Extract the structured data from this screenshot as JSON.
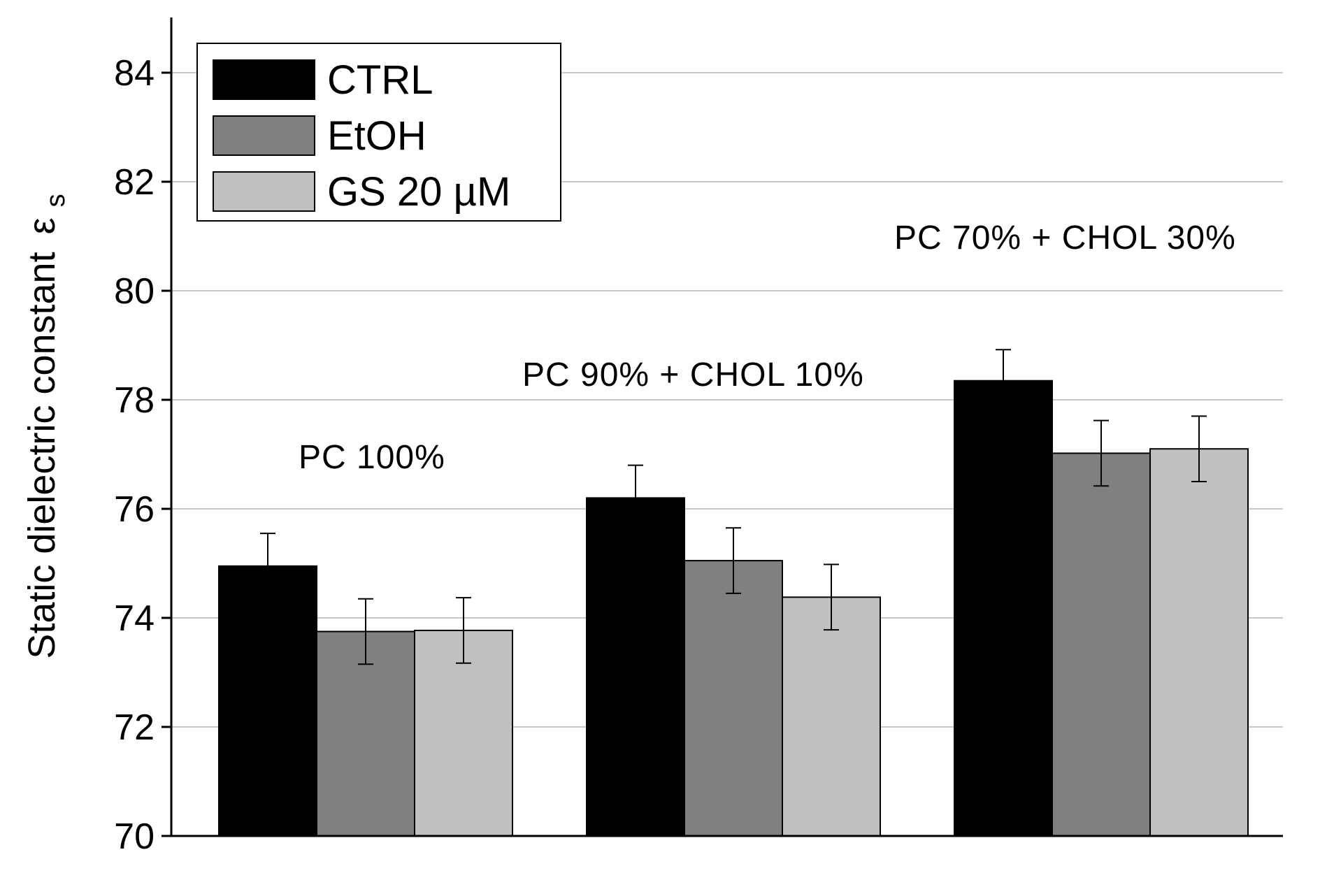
{
  "chart_data": {
    "type": "bar",
    "title": "",
    "xlabel": "",
    "ylabel": "Static dielectric constant",
    "ylabel_symbol": "ε",
    "ylabel_subscript": "s",
    "ylim": [
      70,
      85
    ],
    "yticks": [
      70,
      72,
      74,
      76,
      78,
      80,
      82,
      84
    ],
    "grid": true,
    "legend_position": "top-left",
    "categories": [
      "PC 100%",
      "PC 90% + CHOL 10%",
      "PC 70% + CHOL 30%"
    ],
    "series": [
      {
        "name": "CTRL",
        "color": "#000000",
        "values": [
          74.95,
          76.2,
          78.35
        ],
        "errors": [
          0.6,
          0.6,
          0.57
        ]
      },
      {
        "name": "EtOH",
        "color": "#808080",
        "values": [
          73.75,
          75.05,
          77.02
        ],
        "errors": [
          0.6,
          0.6,
          0.6
        ]
      },
      {
        "name": "GS 20 µM",
        "color": "#c0c0c0",
        "values": [
          73.77,
          74.38,
          77.1
        ],
        "errors": [
          0.6,
          0.6,
          0.6
        ]
      }
    ]
  }
}
